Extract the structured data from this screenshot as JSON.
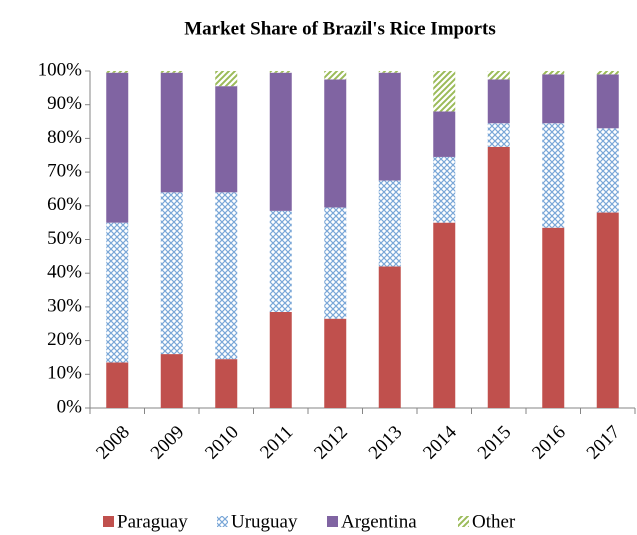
{
  "chart_data": {
    "type": "stacked_bar",
    "title": "Market Share of Brazil's Rice Imports",
    "categories": [
      "2008",
      "2009",
      "2010",
      "2011",
      "2012",
      "2013",
      "2014",
      "2015",
      "2016",
      "2017"
    ],
    "series": [
      {
        "name": "Paraguay",
        "color": "#c0504d",
        "values": [
          13.5,
          16,
          14.5,
          28.5,
          26.5,
          42,
          55,
          77.5,
          53.5,
          58
        ]
      },
      {
        "name": "Uruguay",
        "color": "#9dc3e6",
        "values": [
          41.5,
          48,
          49.5,
          30,
          33,
          25.5,
          19.5,
          7,
          31,
          25
        ]
      },
      {
        "name": "Argentina",
        "color": "#8064a2",
        "values": [
          44.5,
          35.5,
          31.5,
          41,
          38,
          32,
          13.5,
          13,
          14.5,
          16
        ]
      },
      {
        "name": "Other",
        "color": "#9bbb59",
        "values": [
          0.5,
          0.5,
          4.5,
          0.5,
          2.5,
          0.5,
          12,
          2.5,
          1,
          1
        ]
      }
    ],
    "ylim": [
      0,
      100
    ],
    "yticks": [
      {
        "value": 0,
        "label": "0%"
      },
      {
        "value": 10,
        "label": "10%"
      },
      {
        "value": 20,
        "label": "20%"
      },
      {
        "value": 30,
        "label": "30%"
      },
      {
        "value": 40,
        "label": "40%"
      },
      {
        "value": 50,
        "label": "50%"
      },
      {
        "value": 60,
        "label": "60%"
      },
      {
        "value": 70,
        "label": "70%"
      },
      {
        "value": 80,
        "label": "80%"
      },
      {
        "value": 90,
        "label": "90%"
      },
      {
        "value": 100,
        "label": "100%"
      }
    ],
    "legend": "bottom"
  }
}
